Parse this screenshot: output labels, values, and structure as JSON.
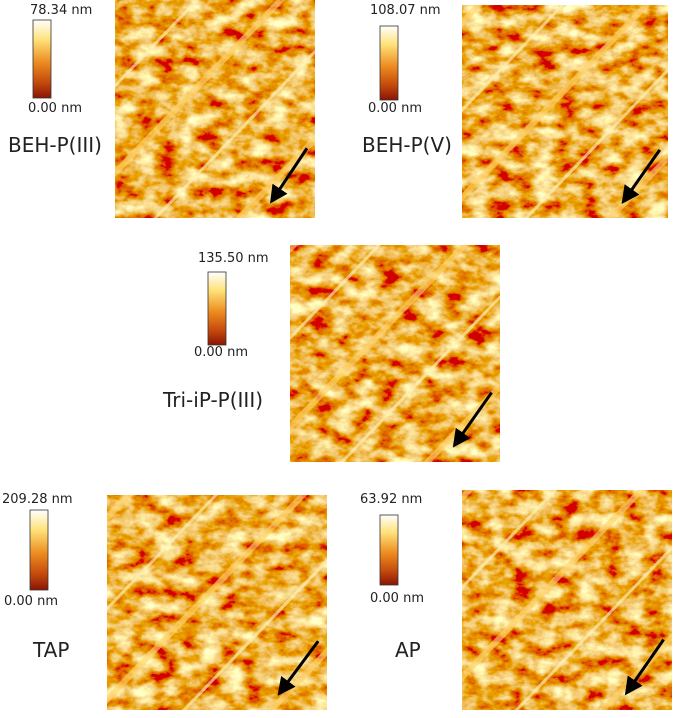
{
  "panels": [
    {
      "max_label": "78.34 nm",
      "min_label": "0.00 nm",
      "name": "BEH-P(III)"
    },
    {
      "max_label": "108.07 nm",
      "min_label": "0.00 nm",
      "name": "BEH-P(V)"
    },
    {
      "max_label": "135.50 nm",
      "min_label": "0.00 nm",
      "name": "Tri-iP-P(III)"
    },
    {
      "max_label": "209.28 nm",
      "min_label": "0.00 nm",
      "name": "TAP"
    },
    {
      "max_label": "63.92 nm",
      "min_label": "0.00 nm",
      "name": "AP"
    }
  ]
}
